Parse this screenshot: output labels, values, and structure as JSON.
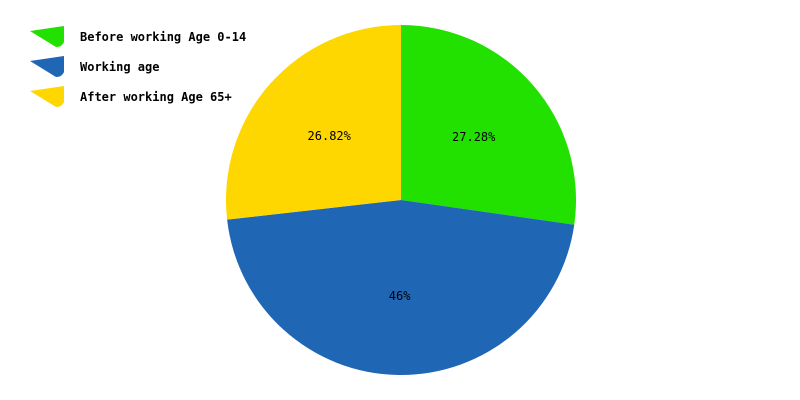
{
  "chart_data": {
    "type": "pie",
    "categories": [
      "Before working Age 0-14",
      "Working age",
      "After working Age 65+"
    ],
    "values": [
      27.28,
      46,
      26.82
    ],
    "value_labels": [
      "27.28%",
      "46%",
      "26.82%"
    ],
    "colors": [
      "#22e000",
      "#1f66b4",
      "#ffd700"
    ],
    "legend": {
      "placement": "top-left"
    }
  }
}
